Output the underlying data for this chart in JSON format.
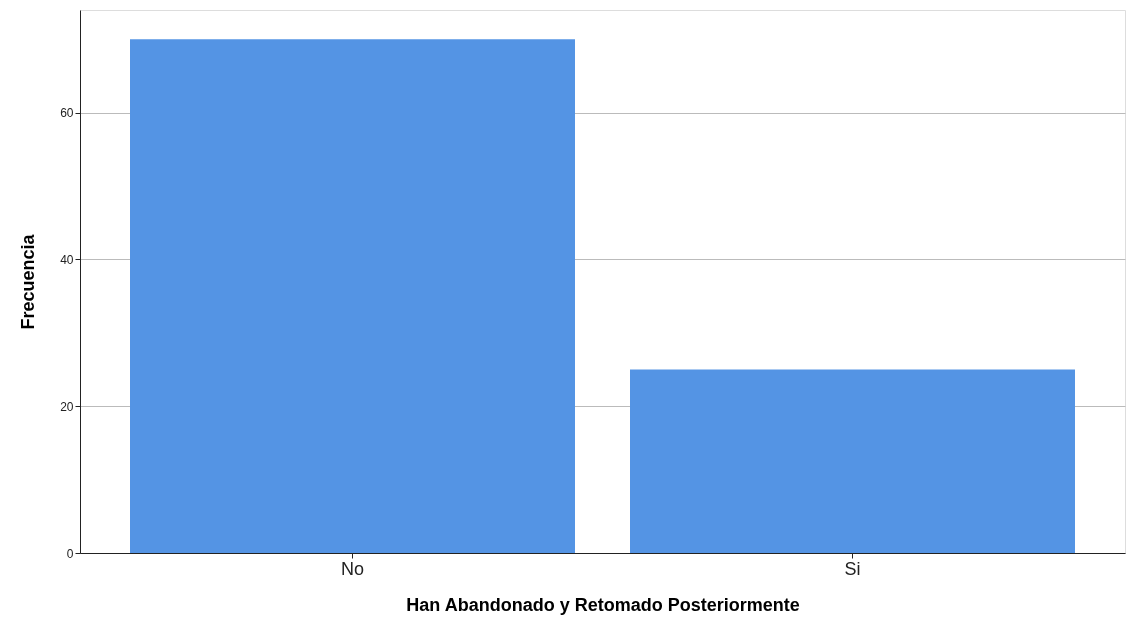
{
  "chart_data": {
    "type": "bar",
    "xlabel": "Han Abandonado y Retomado Posteriormente",
    "ylabel": "Frecuencia",
    "categories": [
      "No",
      "Si"
    ],
    "values": [
      70,
      25
    ],
    "color": "#5494e4",
    "ylim": [
      0,
      74
    ],
    "yticks": [
      0,
      20,
      40,
      60
    ],
    "grid": "y"
  }
}
